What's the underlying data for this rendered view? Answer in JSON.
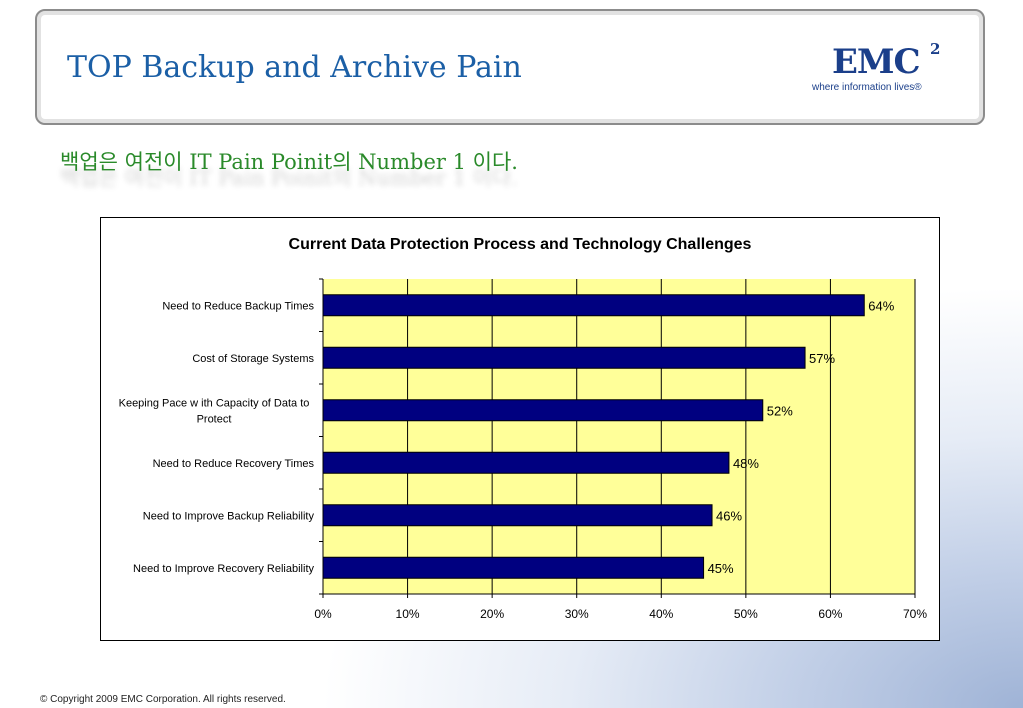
{
  "slide": {
    "title": "TOP Backup and Archive Pain",
    "subtitle": "백업은 여전이 IT Pain Poinit의 Number 1 이다.",
    "footer": "© Copyright 2009 EMC Corporation. All rights reserved.",
    "logo": {
      "word": "EMC",
      "superscript": "2",
      "tagline": "where information lives®"
    }
  },
  "chart_data": {
    "type": "bar",
    "orientation": "horizontal",
    "title": "Current Data Protection Process and Technology Challenges",
    "categories": [
      "Need to Reduce Backup Times",
      "Cost of Storage Systems",
      "Keeping Pace w ith Capacity of Data to Protect",
      "Need to Reduce Recovery Times",
      "Need to Improve Backup Reliability",
      "Need to Improve Recovery Reliability"
    ],
    "values": [
      64,
      57,
      52,
      48,
      46,
      45
    ],
    "data_labels": [
      "64%",
      "57%",
      "52%",
      "48%",
      "46%",
      "45%"
    ],
    "xlim": [
      0,
      70
    ],
    "x_ticks": [
      0,
      10,
      20,
      30,
      40,
      50,
      60,
      70
    ],
    "x_tick_labels": [
      "0%",
      "10%",
      "20%",
      "30%",
      "40%",
      "50%",
      "60%",
      "70%"
    ],
    "xlabel": "",
    "ylabel": "",
    "grid": true,
    "legend": "none",
    "colors": {
      "bar": "#000080",
      "plot_background": "#ffff99"
    }
  }
}
